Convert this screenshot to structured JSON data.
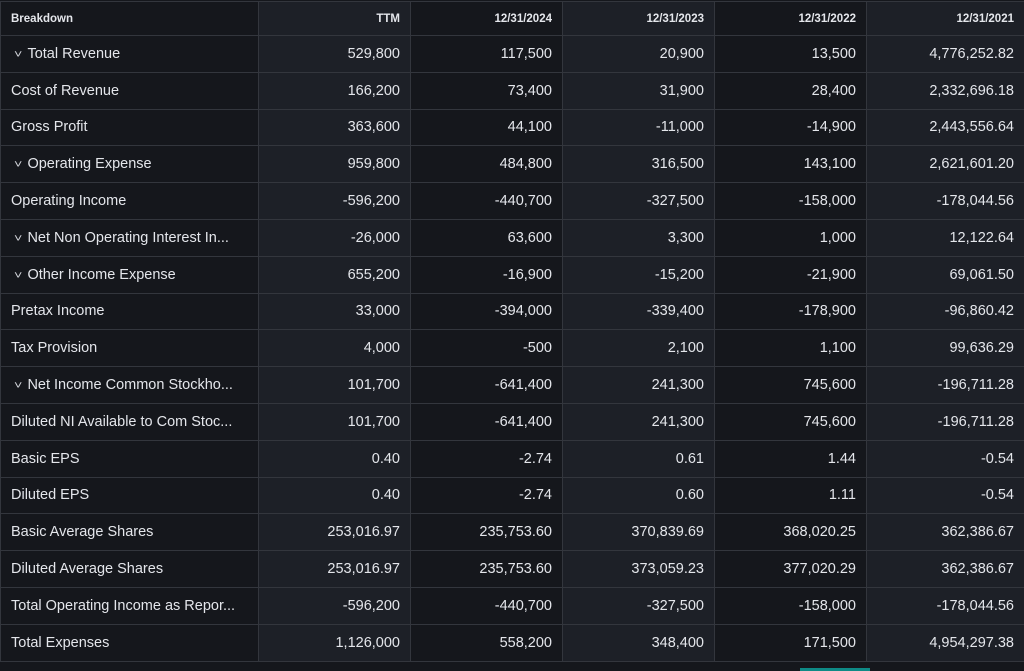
{
  "headers": [
    "Breakdown",
    "TTM",
    "12/31/2024",
    "12/31/2023",
    "12/31/2022",
    "12/31/2021"
  ],
  "rows": [
    {
      "label": "Total Revenue",
      "expandable": true,
      "values": [
        "529,800",
        "117,500",
        "20,900",
        "13,500",
        "4,776,252.82"
      ]
    },
    {
      "label": "Cost of Revenue",
      "expandable": false,
      "values": [
        "166,200",
        "73,400",
        "31,900",
        "28,400",
        "2,332,696.18"
      ]
    },
    {
      "label": "Gross Profit",
      "expandable": false,
      "values": [
        "363,600",
        "44,100",
        "-11,000",
        "-14,900",
        "2,443,556.64"
      ]
    },
    {
      "label": "Operating Expense",
      "expandable": true,
      "values": [
        "959,800",
        "484,800",
        "316,500",
        "143,100",
        "2,621,601.20"
      ]
    },
    {
      "label": "Operating Income",
      "expandable": false,
      "values": [
        "-596,200",
        "-440,700",
        "-327,500",
        "-158,000",
        "-178,044.56"
      ]
    },
    {
      "label": "Net Non Operating Interest In...",
      "expandable": true,
      "values": [
        "-26,000",
        "63,600",
        "3,300",
        "1,000",
        "12,122.64"
      ]
    },
    {
      "label": "Other Income Expense",
      "expandable": true,
      "values": [
        "655,200",
        "-16,900",
        "-15,200",
        "-21,900",
        "69,061.50"
      ]
    },
    {
      "label": "Pretax Income",
      "expandable": false,
      "values": [
        "33,000",
        "-394,000",
        "-339,400",
        "-178,900",
        "-96,860.42"
      ]
    },
    {
      "label": "Tax Provision",
      "expandable": false,
      "values": [
        "4,000",
        "-500",
        "2,100",
        "1,100",
        "99,636.29"
      ]
    },
    {
      "label": "Net Income Common Stockho...",
      "expandable": true,
      "values": [
        "101,700",
        "-641,400",
        "241,300",
        "745,600",
        "-196,711.28"
      ]
    },
    {
      "label": "Diluted NI Available to Com Stoc...",
      "expandable": false,
      "values": [
        "101,700",
        "-641,400",
        "241,300",
        "745,600",
        "-196,711.28"
      ]
    },
    {
      "label": "Basic EPS",
      "expandable": false,
      "values": [
        "0.40",
        "-2.74",
        "0.61",
        "1.44",
        "-0.54"
      ]
    },
    {
      "label": "Diluted EPS",
      "expandable": false,
      "values": [
        "0.40",
        "-2.74",
        "0.60",
        "1.11",
        "-0.54"
      ]
    },
    {
      "label": "Basic Average Shares",
      "expandable": false,
      "values": [
        "253,016.97",
        "235,753.60",
        "370,839.69",
        "368,020.25",
        "362,386.67"
      ]
    },
    {
      "label": "Diluted Average Shares",
      "expandable": false,
      "values": [
        "253,016.97",
        "235,753.60",
        "373,059.23",
        "377,020.29",
        "362,386.67"
      ]
    },
    {
      "label": "Total Operating Income as Repor...",
      "expandable": false,
      "values": [
        "-596,200",
        "-440,700",
        "-327,500",
        "-158,000",
        "-178,044.56"
      ]
    },
    {
      "label": "Total Expenses",
      "expandable": false,
      "values": [
        "1,126,000",
        "558,200",
        "348,400",
        "171,500",
        "4,954,297.38"
      ]
    }
  ]
}
